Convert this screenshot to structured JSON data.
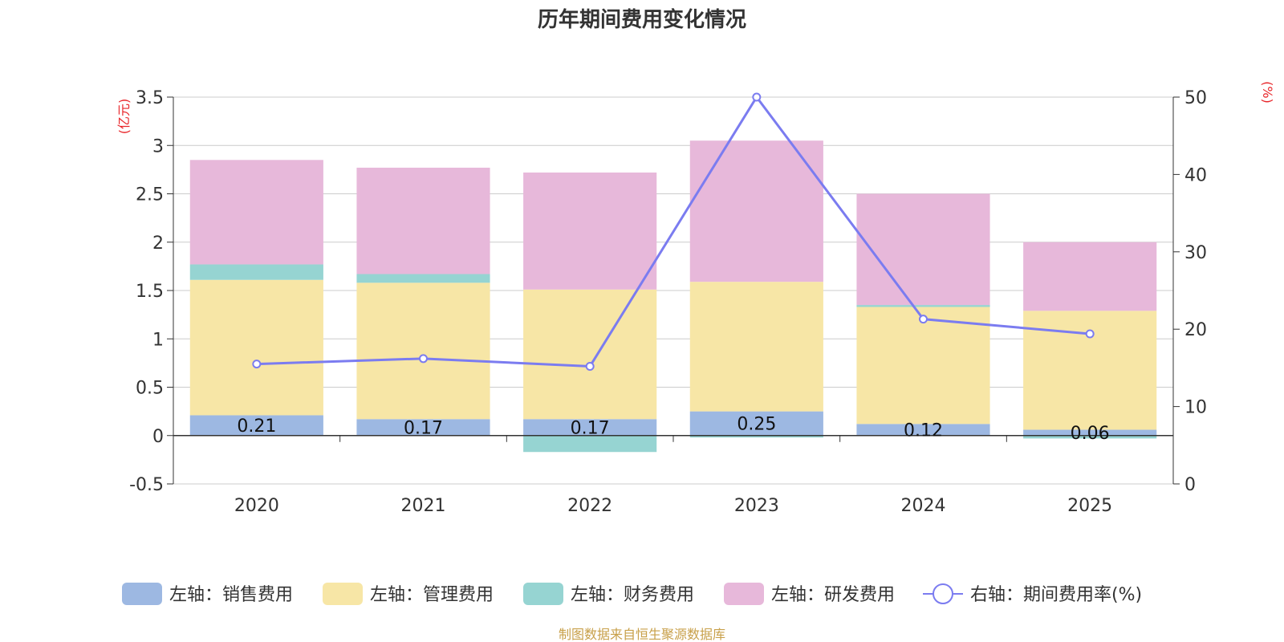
{
  "chart_data": {
    "type": "bar",
    "title": "历年期间费用变化情况",
    "categories": [
      "2020",
      "2021",
      "2022",
      "2023",
      "2024",
      "2025"
    ],
    "left_axis": {
      "unit_label": "(亿元)",
      "ylim": [
        -0.5,
        3.5
      ],
      "ticks": [
        -0.5,
        0,
        0.5,
        1,
        1.5,
        2,
        2.5,
        3,
        3.5
      ],
      "tick_labels": [
        "-0.5",
        "0",
        "0.5",
        "1",
        "1.5",
        "2",
        "2.5",
        "3",
        "3.5"
      ]
    },
    "right_axis": {
      "unit_label": "(%)",
      "ylim": [
        0,
        50
      ],
      "ticks": [
        0,
        10,
        20,
        30,
        40,
        50
      ],
      "tick_labels": [
        "0",
        "10",
        "20",
        "30",
        "40",
        "50"
      ]
    },
    "series": [
      {
        "name": "左轴：销售费用",
        "type": "bar",
        "axis": "left",
        "color": "#9db8e2",
        "values": [
          0.21,
          0.17,
          0.17,
          0.25,
          0.12,
          0.06
        ],
        "labels": [
          "0.21",
          "0.17",
          "0.17",
          "0.25",
          "0.12",
          "0.06"
        ]
      },
      {
        "name": "左轴：管理费用",
        "type": "bar",
        "axis": "left",
        "color": "#f7e6a6",
        "values": [
          1.4,
          1.41,
          1.34,
          1.34,
          1.21,
          1.23
        ]
      },
      {
        "name": "左轴：财务费用",
        "type": "bar",
        "axis": "left",
        "color": "#96d4d2",
        "values": [
          0.16,
          0.09,
          -0.17,
          -0.02,
          0.02,
          -0.03
        ]
      },
      {
        "name": "左轴：研发费用",
        "type": "bar",
        "axis": "left",
        "color": "#e7b8da",
        "values": [
          1.08,
          1.1,
          1.21,
          1.46,
          1.15,
          0.71
        ]
      },
      {
        "name": "右轴：期间费用率(%)",
        "type": "line",
        "axis": "right",
        "color": "#7b7cf0",
        "values": [
          15.5,
          16.2,
          15.2,
          50.0,
          21.3,
          19.4
        ]
      }
    ],
    "legend_position": "bottom-center",
    "footer": "制图数据来自恒生聚源数据库",
    "colors": {
      "title": "#333333",
      "axis_text": "#333333",
      "unit_label": "#e8262a",
      "footer": "#c8a04a",
      "grid": "#cccccc"
    }
  }
}
